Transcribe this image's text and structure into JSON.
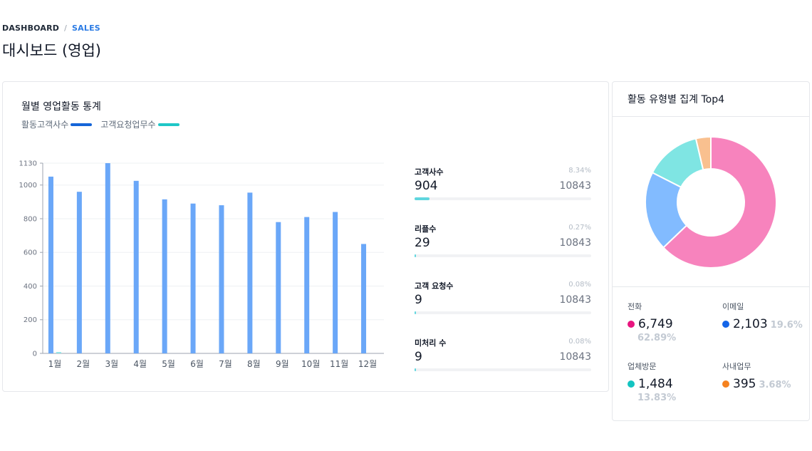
{
  "breadcrumb": {
    "home": "DASHBOARD",
    "separator": "/",
    "current": "SALES"
  },
  "page_title": "대시보드 (영업)",
  "monthly_card": {
    "title": "월별 영업활동 통계",
    "legend": [
      {
        "label": "활동고객사수",
        "color": "#1565d8"
      },
      {
        "label": "고객요청업무수",
        "color": "#1fc7c7"
      }
    ]
  },
  "chart_data": {
    "type": "bar",
    "title": "",
    "xlabel": "",
    "ylabel": "",
    "categories": [
      "1월",
      "2월",
      "3월",
      "4월",
      "5월",
      "6월",
      "7월",
      "8월",
      "9월",
      "10월",
      "11월",
      "12월"
    ],
    "yticks": [
      0,
      200,
      400,
      600,
      800,
      1000,
      1130
    ],
    "ylim": [
      0,
      1130
    ],
    "grid": true,
    "series": [
      {
        "name": "활동고객사수",
        "color": "#6aa7f8",
        "values": [
          1050,
          960,
          1130,
          1025,
          915,
          890,
          880,
          955,
          780,
          810,
          840,
          650
        ]
      },
      {
        "name": "고객요청업무수",
        "color": "#8fe3e6",
        "values": [
          8,
          0,
          0,
          0,
          0,
          0,
          0,
          0,
          0,
          0,
          0,
          0
        ]
      }
    ]
  },
  "stats": [
    {
      "label": "고객사수",
      "pct": "8.34%",
      "value": "904",
      "total": "10843",
      "progress": 0.0834
    },
    {
      "label": "리플수",
      "pct": "0.27%",
      "value": "29",
      "total": "10843",
      "progress": 0.0027
    },
    {
      "label": "고객 요청수",
      "pct": "0.08%",
      "value": "9",
      "total": "10843",
      "progress": 0.0008
    },
    {
      "label": "미처리 수",
      "pct": "0.08%",
      "value": "9",
      "total": "10843",
      "progress": 0.0008
    }
  ],
  "type_card": {
    "title": "활동 유형별 집계 Top4",
    "donut": [
      {
        "name": "전화",
        "value": 6749,
        "color": "#f783bd"
      },
      {
        "name": "이메일",
        "value": 2103,
        "color": "#82bbff"
      },
      {
        "name": "업체방문",
        "value": 1484,
        "color": "#7fe5e3"
      },
      {
        "name": "사내업무",
        "value": 395,
        "color": "#f9c08f"
      }
    ],
    "summary": [
      {
        "label": "전화",
        "value": "6,749",
        "pct": "62.89%",
        "dot_color": "#e8157f"
      },
      {
        "label": "이메일",
        "value": "2,103",
        "pct": "19.6%",
        "dot_color": "#1565e8"
      },
      {
        "label": "업체방문",
        "value": "1,484",
        "pct": "13.83%",
        "dot_color": "#13c4c1"
      },
      {
        "label": "사내업무",
        "value": "395",
        "pct": "3.68%",
        "dot_color": "#f58220"
      }
    ]
  }
}
